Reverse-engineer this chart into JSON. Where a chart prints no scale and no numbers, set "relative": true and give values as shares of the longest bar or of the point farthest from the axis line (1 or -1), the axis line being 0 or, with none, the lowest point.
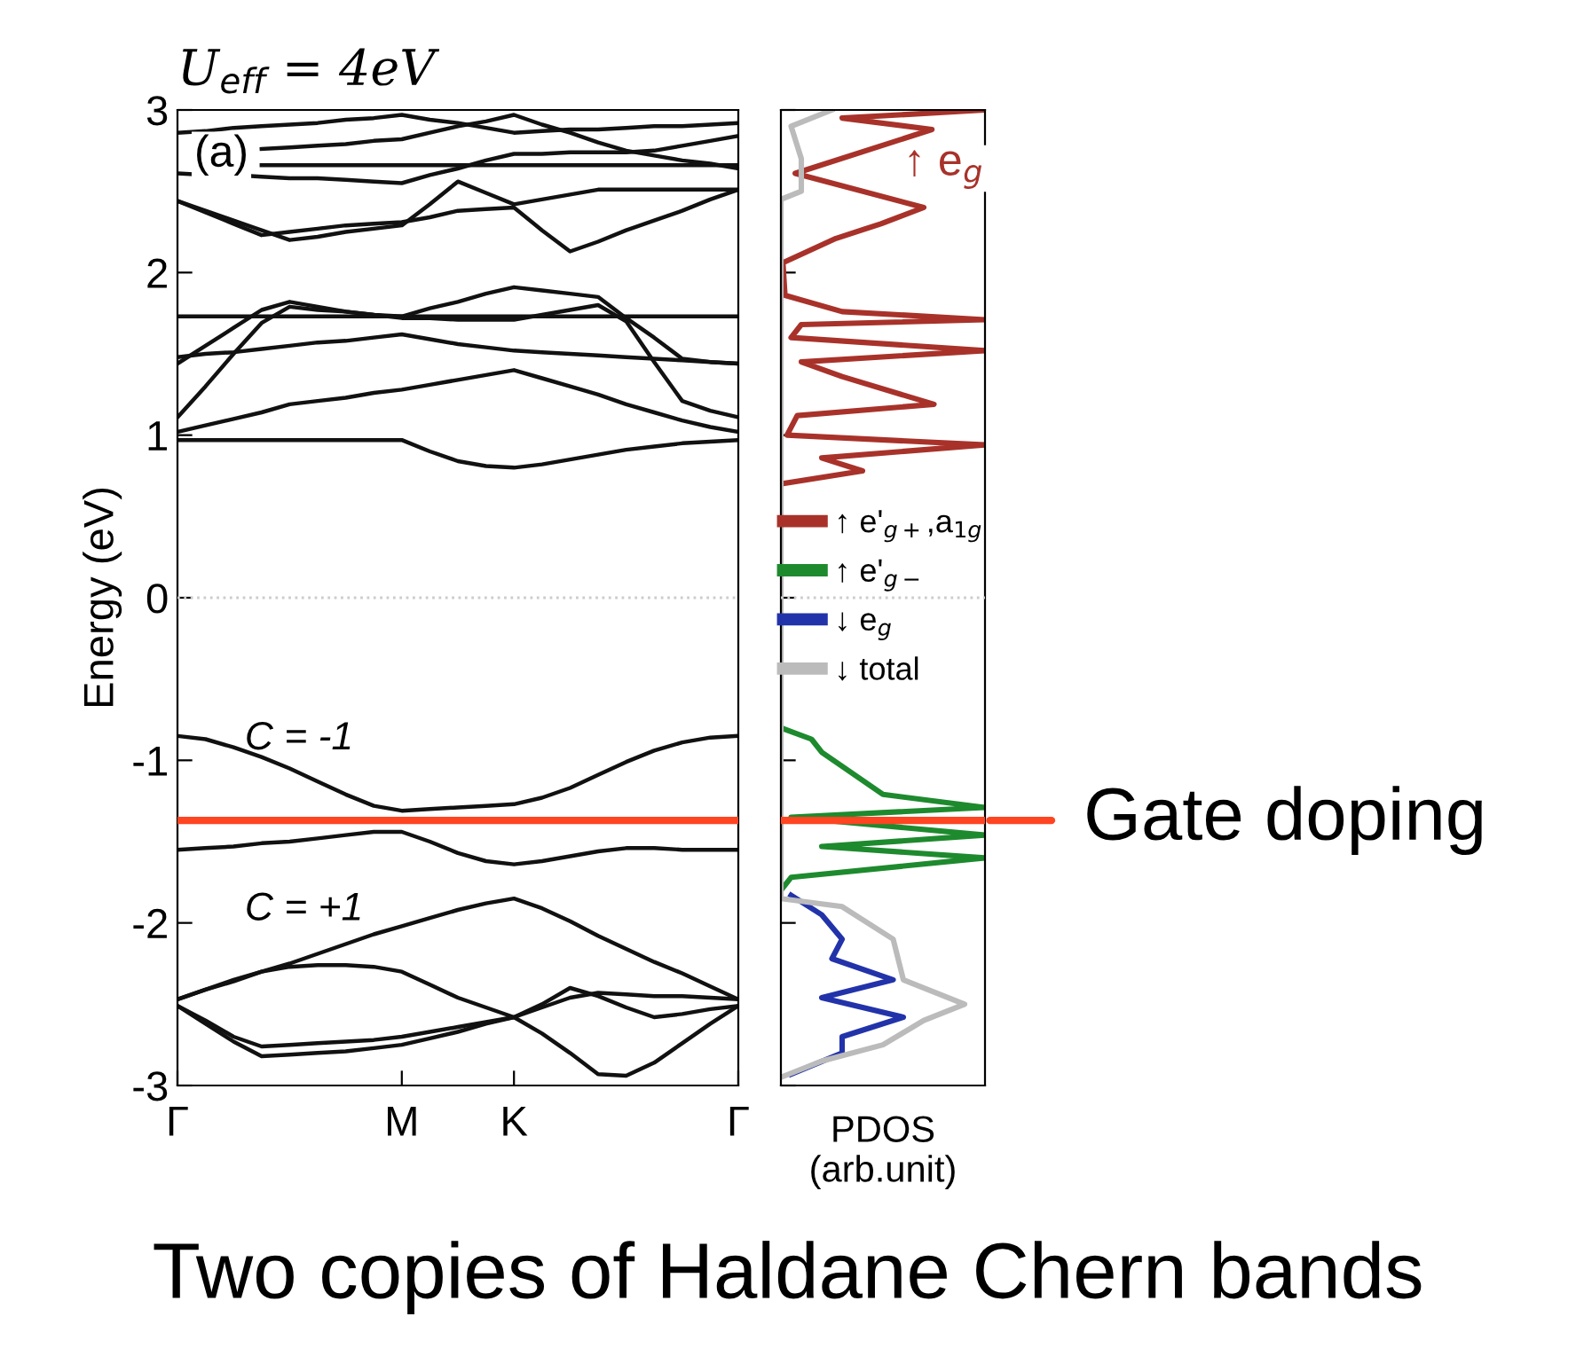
{
  "chart_data": [
    {
      "type": "line",
      "title": "U$_{eff}$ = 4eV",
      "ylabel": "Energy (eV)",
      "categories": [
        "Γ",
        null,
        null,
        null,
        null,
        null,
        null,
        null,
        "M",
        null,
        null,
        null,
        "K",
        null,
        null,
        null,
        null,
        null,
        null,
        null,
        "Γ"
      ],
      "ylim": [
        -3,
        3
      ],
      "yticks": [
        -3,
        -2,
        -1,
        0,
        1,
        2,
        3
      ],
      "line_style": "solid",
      "marker": "none",
      "series": [
        {
          "color": "#111111",
          "values": [
            -0.85,
            -0.87,
            -0.92,
            -0.98,
            -1.05,
            -1.13,
            -1.21,
            -1.28,
            -1.31,
            -1.3,
            -1.29,
            -1.28,
            -1.27,
            -1.23,
            -1.17,
            -1.09,
            -1.01,
            -0.94,
            -0.89,
            -0.86,
            -0.85
          ]
        },
        {
          "color": "#111111",
          "values": [
            -1.55,
            -1.54,
            -1.53,
            -1.51,
            -1.5,
            -1.48,
            -1.46,
            -1.44,
            -1.44,
            -1.5,
            -1.57,
            -1.62,
            -1.64,
            -1.62,
            -1.59,
            -1.56,
            -1.54,
            -1.54,
            -1.55,
            -1.55,
            -1.55
          ]
        },
        {
          "color": "#111111",
          "values": [
            -2.47,
            -2.41,
            -2.36,
            -2.3,
            -2.25,
            -2.19,
            -2.13,
            -2.07,
            -2.02,
            -1.97,
            -1.92,
            -1.88,
            -1.85,
            -1.91,
            -1.99,
            -2.08,
            -2.16,
            -2.24,
            -2.31,
            -2.39,
            -2.47
          ]
        },
        {
          "color": "#111111",
          "values": [
            -2.47,
            -2.41,
            -2.35,
            -2.3,
            -2.27,
            -2.26,
            -2.26,
            -2.27,
            -2.3,
            -2.38,
            -2.46,
            -2.52,
            -2.58,
            -2.68,
            -2.8,
            -2.93,
            -2.94,
            -2.86,
            -2.74,
            -2.62,
            -2.51
          ]
        },
        {
          "color": "#111111",
          "values": [
            -2.51,
            -2.6,
            -2.7,
            -2.76,
            -2.75,
            -2.74,
            -2.73,
            -2.72,
            -2.7,
            -2.67,
            -2.64,
            -2.61,
            -2.58,
            -2.5,
            -2.4,
            -2.45,
            -2.52,
            -2.58,
            -2.56,
            -2.53,
            -2.51
          ]
        },
        {
          "color": "#111111",
          "values": [
            -2.51,
            -2.62,
            -2.73,
            -2.82,
            -2.81,
            -2.8,
            -2.79,
            -2.77,
            -2.75,
            -2.71,
            -2.67,
            -2.62,
            -2.58,
            -2.52,
            -2.46,
            -2.43,
            -2.44,
            -2.45,
            -2.45,
            -2.46,
            -2.47
          ]
        },
        {
          "color": "#111111",
          "values": [
            0.97,
            0.97,
            0.97,
            0.97,
            0.97,
            0.97,
            0.97,
            0.97,
            0.97,
            0.9,
            0.84,
            0.81,
            0.8,
            0.82,
            0.85,
            0.88,
            0.91,
            0.93,
            0.95,
            0.96,
            0.97
          ]
        },
        {
          "color": "#111111",
          "values": [
            1.73,
            1.73,
            1.73,
            1.73,
            1.73,
            1.73,
            1.73,
            1.73,
            1.73,
            1.73,
            1.73,
            1.73,
            1.73,
            1.73,
            1.73,
            1.73,
            1.73,
            1.73,
            1.73,
            1.73,
            1.73
          ]
        },
        {
          "color": "#111111",
          "values": [
            1.48,
            1.5,
            1.51,
            1.53,
            1.55,
            1.57,
            1.58,
            1.6,
            1.62,
            1.59,
            1.56,
            1.54,
            1.52,
            1.51,
            1.5,
            1.49,
            1.48,
            1.47,
            1.46,
            1.45,
            1.44
          ]
        },
        {
          "color": "#111111",
          "values": [
            1.02,
            1.06,
            1.1,
            1.14,
            1.19,
            1.21,
            1.23,
            1.26,
            1.28,
            1.31,
            1.34,
            1.37,
            1.4,
            1.35,
            1.3,
            1.25,
            1.19,
            1.14,
            1.09,
            1.05,
            1.02
          ]
        },
        {
          "color": "#111111",
          "values": [
            1.44,
            1.55,
            1.66,
            1.77,
            1.82,
            1.79,
            1.76,
            1.74,
            1.73,
            1.78,
            1.82,
            1.87,
            1.91,
            1.89,
            1.87,
            1.85,
            1.72,
            1.6,
            1.47,
            1.45,
            1.44
          ]
        },
        {
          "color": "#111111",
          "values": [
            1.11,
            1.3,
            1.5,
            1.69,
            1.79,
            1.77,
            1.76,
            1.74,
            1.72,
            1.72,
            1.71,
            1.71,
            1.71,
            1.74,
            1.77,
            1.8,
            1.7,
            1.45,
            1.21,
            1.15,
            1.11
          ]
        },
        {
          "color": "#111111",
          "values": [
            2.44,
            2.37,
            2.3,
            2.23,
            2.25,
            2.27,
            2.29,
            2.3,
            2.31,
            2.34,
            2.38,
            2.39,
            2.4,
            2.26,
            2.13,
            2.19,
            2.26,
            2.32,
            2.38,
            2.45,
            2.51
          ]
        },
        {
          "color": "#111111",
          "values": [
            2.44,
            2.38,
            2.32,
            2.26,
            2.2,
            2.22,
            2.25,
            2.27,
            2.29,
            2.42,
            2.56,
            2.49,
            2.42,
            2.45,
            2.48,
            2.51,
            2.51,
            2.51,
            2.51,
            2.51,
            2.51
          ]
        },
        {
          "color": "#111111",
          "values": [
            null,
            null,
            null,
            2.76,
            2.77,
            2.78,
            2.79,
            2.81,
            2.82,
            2.86,
            2.9,
            2.93,
            2.97,
            2.91,
            2.86,
            2.8,
            2.75,
            2.72,
            2.69,
            2.67,
            2.64
          ]
        },
        {
          "color": "#111111",
          "values": [
            2.61,
            2.6,
            2.6,
            2.59,
            2.58,
            2.58,
            2.57,
            2.56,
            2.55,
            2.6,
            2.64,
            2.69,
            2.73,
            2.73,
            2.74,
            2.74,
            2.74,
            2.75,
            2.78,
            2.81,
            2.84
          ]
        },
        {
          "color": "#111111",
          "values": [
            2.86,
            2.87,
            2.89,
            2.9,
            2.91,
            2.92,
            2.94,
            2.95,
            2.97,
            2.94,
            2.92,
            2.89,
            2.86,
            2.87,
            2.88,
            2.88,
            2.89,
            2.9,
            2.9,
            2.91,
            2.92
          ]
        },
        {
          "color": "#111111",
          "values": [
            null,
            null,
            null,
            2.66,
            2.66,
            2.66,
            2.66,
            2.66,
            2.66,
            2.66,
            2.66,
            2.66,
            2.66,
            2.66,
            2.66,
            2.66,
            2.66,
            2.66,
            2.66,
            2.66,
            2.66
          ]
        }
      ],
      "ref_lines": [
        {
          "axis": "y",
          "value": 0,
          "color": "#cccccc",
          "line_style": "dotted"
        },
        {
          "axis": "y",
          "value": -1.37,
          "color": "#ff4422",
          "line_style": "solid"
        }
      ],
      "annotations": [
        "(a)",
        "C = -1",
        "C = +1",
        "Two copies of Haldane Chern bands"
      ]
    },
    {
      "type": "line",
      "orientation": "horizontal",
      "relative": true,
      "xlabel": "PDOS\n(arb.unit)",
      "ylim": [
        -3,
        3
      ],
      "yticks": [
        -3,
        -2,
        -1,
        0,
        1,
        2,
        3
      ],
      "tick_labels": false,
      "legend": "center",
      "line_style": "solid",
      "marker": "none",
      "series": [
        {
          "name": "↑ e'$_{g+}$,a$_{1g}$",
          "color": "#a8322a",
          "x": [
            3.0,
            2.95,
            2.88,
            2.61,
            2.4,
            2.3,
            2.21,
            2.06,
            1.86,
            1.76,
            1.71,
            1.68,
            1.6,
            1.52,
            1.45,
            1.36,
            1.19,
            1.12,
            1.0,
            0.94,
            0.86,
            0.78,
            0.7
          ],
          "values": [
            1.0,
            0.3,
            0.74,
            0.07,
            0.7,
            0.49,
            0.27,
            0.01,
            0.02,
            0.3,
            1.0,
            0.1,
            0.05,
            1.0,
            0.1,
            0.3,
            0.75,
            0.08,
            0.03,
            1.0,
            0.2,
            0.4,
            0.0
          ]
        },
        {
          "name": "↑ e'$_{g−}$",
          "color": "#1e8a2e",
          "x": [
            -0.8,
            -0.87,
            -0.95,
            -1.21,
            -1.29,
            -1.35,
            -1.46,
            -1.53,
            -1.6,
            -1.72,
            -1.8
          ],
          "values": [
            0.0,
            0.15,
            0.2,
            0.5,
            1.0,
            0.05,
            1.0,
            0.2,
            1.0,
            0.05,
            0.0
          ]
        },
        {
          "name": "↓ e$_{g}$",
          "color": "#2233aa",
          "x": [
            -1.83,
            -1.95,
            -2.1,
            -2.22,
            -2.35,
            -2.46,
            -2.58,
            -2.7,
            -2.8,
            -2.93
          ],
          "values": [
            0.05,
            0.2,
            0.3,
            0.25,
            0.55,
            0.2,
            0.6,
            0.3,
            0.3,
            0.05
          ]
        },
        {
          "name": "↓ total",
          "color": "#bbbbbb",
          "x": [
            3.0,
            2.9,
            2.7,
            2.5,
            2.45,
            -1.85,
            -1.9,
            -2.1,
            -2.35,
            -2.5,
            -2.6,
            -2.75,
            -2.85,
            -2.95
          ],
          "values": [
            0.25,
            0.05,
            0.1,
            0.1,
            0.0,
            0.0,
            0.3,
            0.55,
            0.6,
            0.9,
            0.7,
            0.5,
            0.2,
            0.0
          ]
        }
      ],
      "ref_lines": [
        {
          "axis": "y",
          "value": 0,
          "color": "#cccccc",
          "line_style": "dotted"
        },
        {
          "axis": "y",
          "value": -1.37,
          "color": "#ff4422",
          "line_style": "solid",
          "label": "Gate doping"
        }
      ],
      "annotations": [
        "↑ e$_{g}$"
      ]
    }
  ]
}
